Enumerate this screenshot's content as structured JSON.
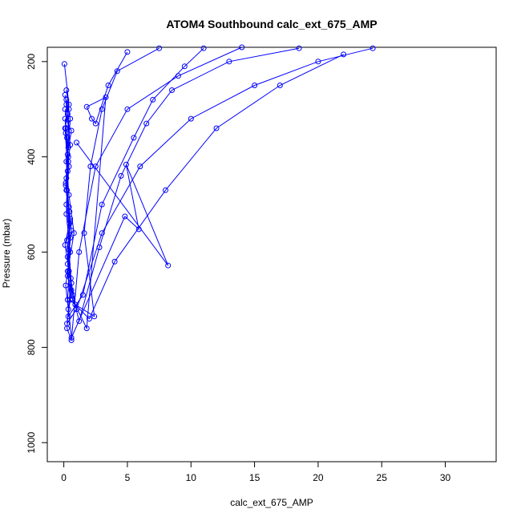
{
  "chart_data": {
    "type": "line",
    "title": "ATOM4 Southbound calc_ext_675_AMP",
    "xlabel": "calc_ext_675_AMP",
    "ylabel": "Pressure (mbar)",
    "xlim": [
      -1.3,
      34
    ],
    "ylim": [
      1040,
      170
    ],
    "y_reversed": true,
    "x_ticks": [
      0,
      5,
      10,
      15,
      20,
      25,
      30
    ],
    "y_ticks": [
      200,
      400,
      600,
      800,
      1000
    ],
    "grid": false,
    "line_color": "#0000ff",
    "marker": "open-circle",
    "series": [
      {
        "x": [
          0.05,
          0.4,
          0.1,
          0.3,
          0.2,
          0.5,
          0.15,
          0.35,
          0.25,
          0.6,
          1.2,
          2.5,
          5.0,
          9.0,
          14.0
        ],
        "y": [
          205,
          290,
          340,
          430,
          520,
          600,
          670,
          720,
          760,
          785,
          600,
          420,
          300,
          230,
          170
        ]
      },
      {
        "x": [
          0.1,
          0.3,
          0.6,
          0.2,
          0.4,
          0.8,
          0.3,
          0.5,
          2.0,
          4.0,
          8.0,
          12.0,
          17.0,
          22.0
        ],
        "y": [
          300,
          330,
          345,
          410,
          480,
          560,
          640,
          700,
          740,
          620,
          470,
          340,
          250,
          185
        ]
      },
      {
        "x": [
          0.2,
          0.5,
          0.35,
          0.15,
          0.45,
          0.3,
          0.6,
          0.25,
          1.0,
          3.0,
          6.0,
          10.0,
          15.0,
          20.0,
          24.3
        ],
        "y": [
          280,
          320,
          380,
          460,
          540,
          610,
          680,
          750,
          720,
          560,
          420,
          320,
          250,
          200,
          172
        ]
      },
      {
        "x": [
          0.1,
          0.25,
          0.4,
          0.2,
          0.5,
          0.3,
          0.7,
          1.8,
          3.3,
          1.8,
          2.2,
          2.5,
          3.5,
          5.0
        ],
        "y": [
          320,
          360,
          420,
          500,
          570,
          650,
          700,
          760,
          275,
          295,
          320,
          330,
          250,
          180
        ]
      },
      {
        "x": [
          0.15,
          0.35,
          0.2,
          0.5,
          0.1,
          0.4,
          0.3,
          0.6,
          4.8,
          5.9,
          4.9,
          8.2,
          1.0
        ],
        "y": [
          350,
          410,
          470,
          530,
          585,
          640,
          700,
          780,
          525,
          552,
          416,
          628,
          370
        ]
      },
      {
        "x": [
          0.2,
          0.4,
          0.3,
          0.15,
          0.45,
          0.25,
          0.55,
          0.35,
          1.5,
          3.0,
          5.5,
          7.0,
          9.5,
          11.0
        ],
        "y": [
          260,
          300,
          395,
          455,
          515,
          575,
          655,
          735,
          690,
          500,
          360,
          280,
          210,
          172
        ]
      },
      {
        "x": [
          0.1,
          0.3,
          0.5,
          0.2,
          0.4,
          0.6,
          0.3,
          0.7,
          1.2,
          2.8,
          4.5,
          6.5,
          8.5,
          13.0,
          18.5
        ],
        "y": [
          270,
          310,
          375,
          445,
          505,
          555,
          625,
          690,
          745,
          590,
          440,
          330,
          260,
          200,
          172
        ]
      },
      {
        "x": [
          0.2,
          0.15,
          0.35,
          0.25,
          0.5,
          0.4,
          0.6,
          0.9,
          2.4,
          1.6,
          2.1,
          3.0,
          4.2,
          7.5
        ],
        "y": [
          290,
          340,
          400,
          470,
          535,
          595,
          665,
          710,
          735,
          560,
          420,
          300,
          220,
          172
        ]
      }
    ]
  }
}
